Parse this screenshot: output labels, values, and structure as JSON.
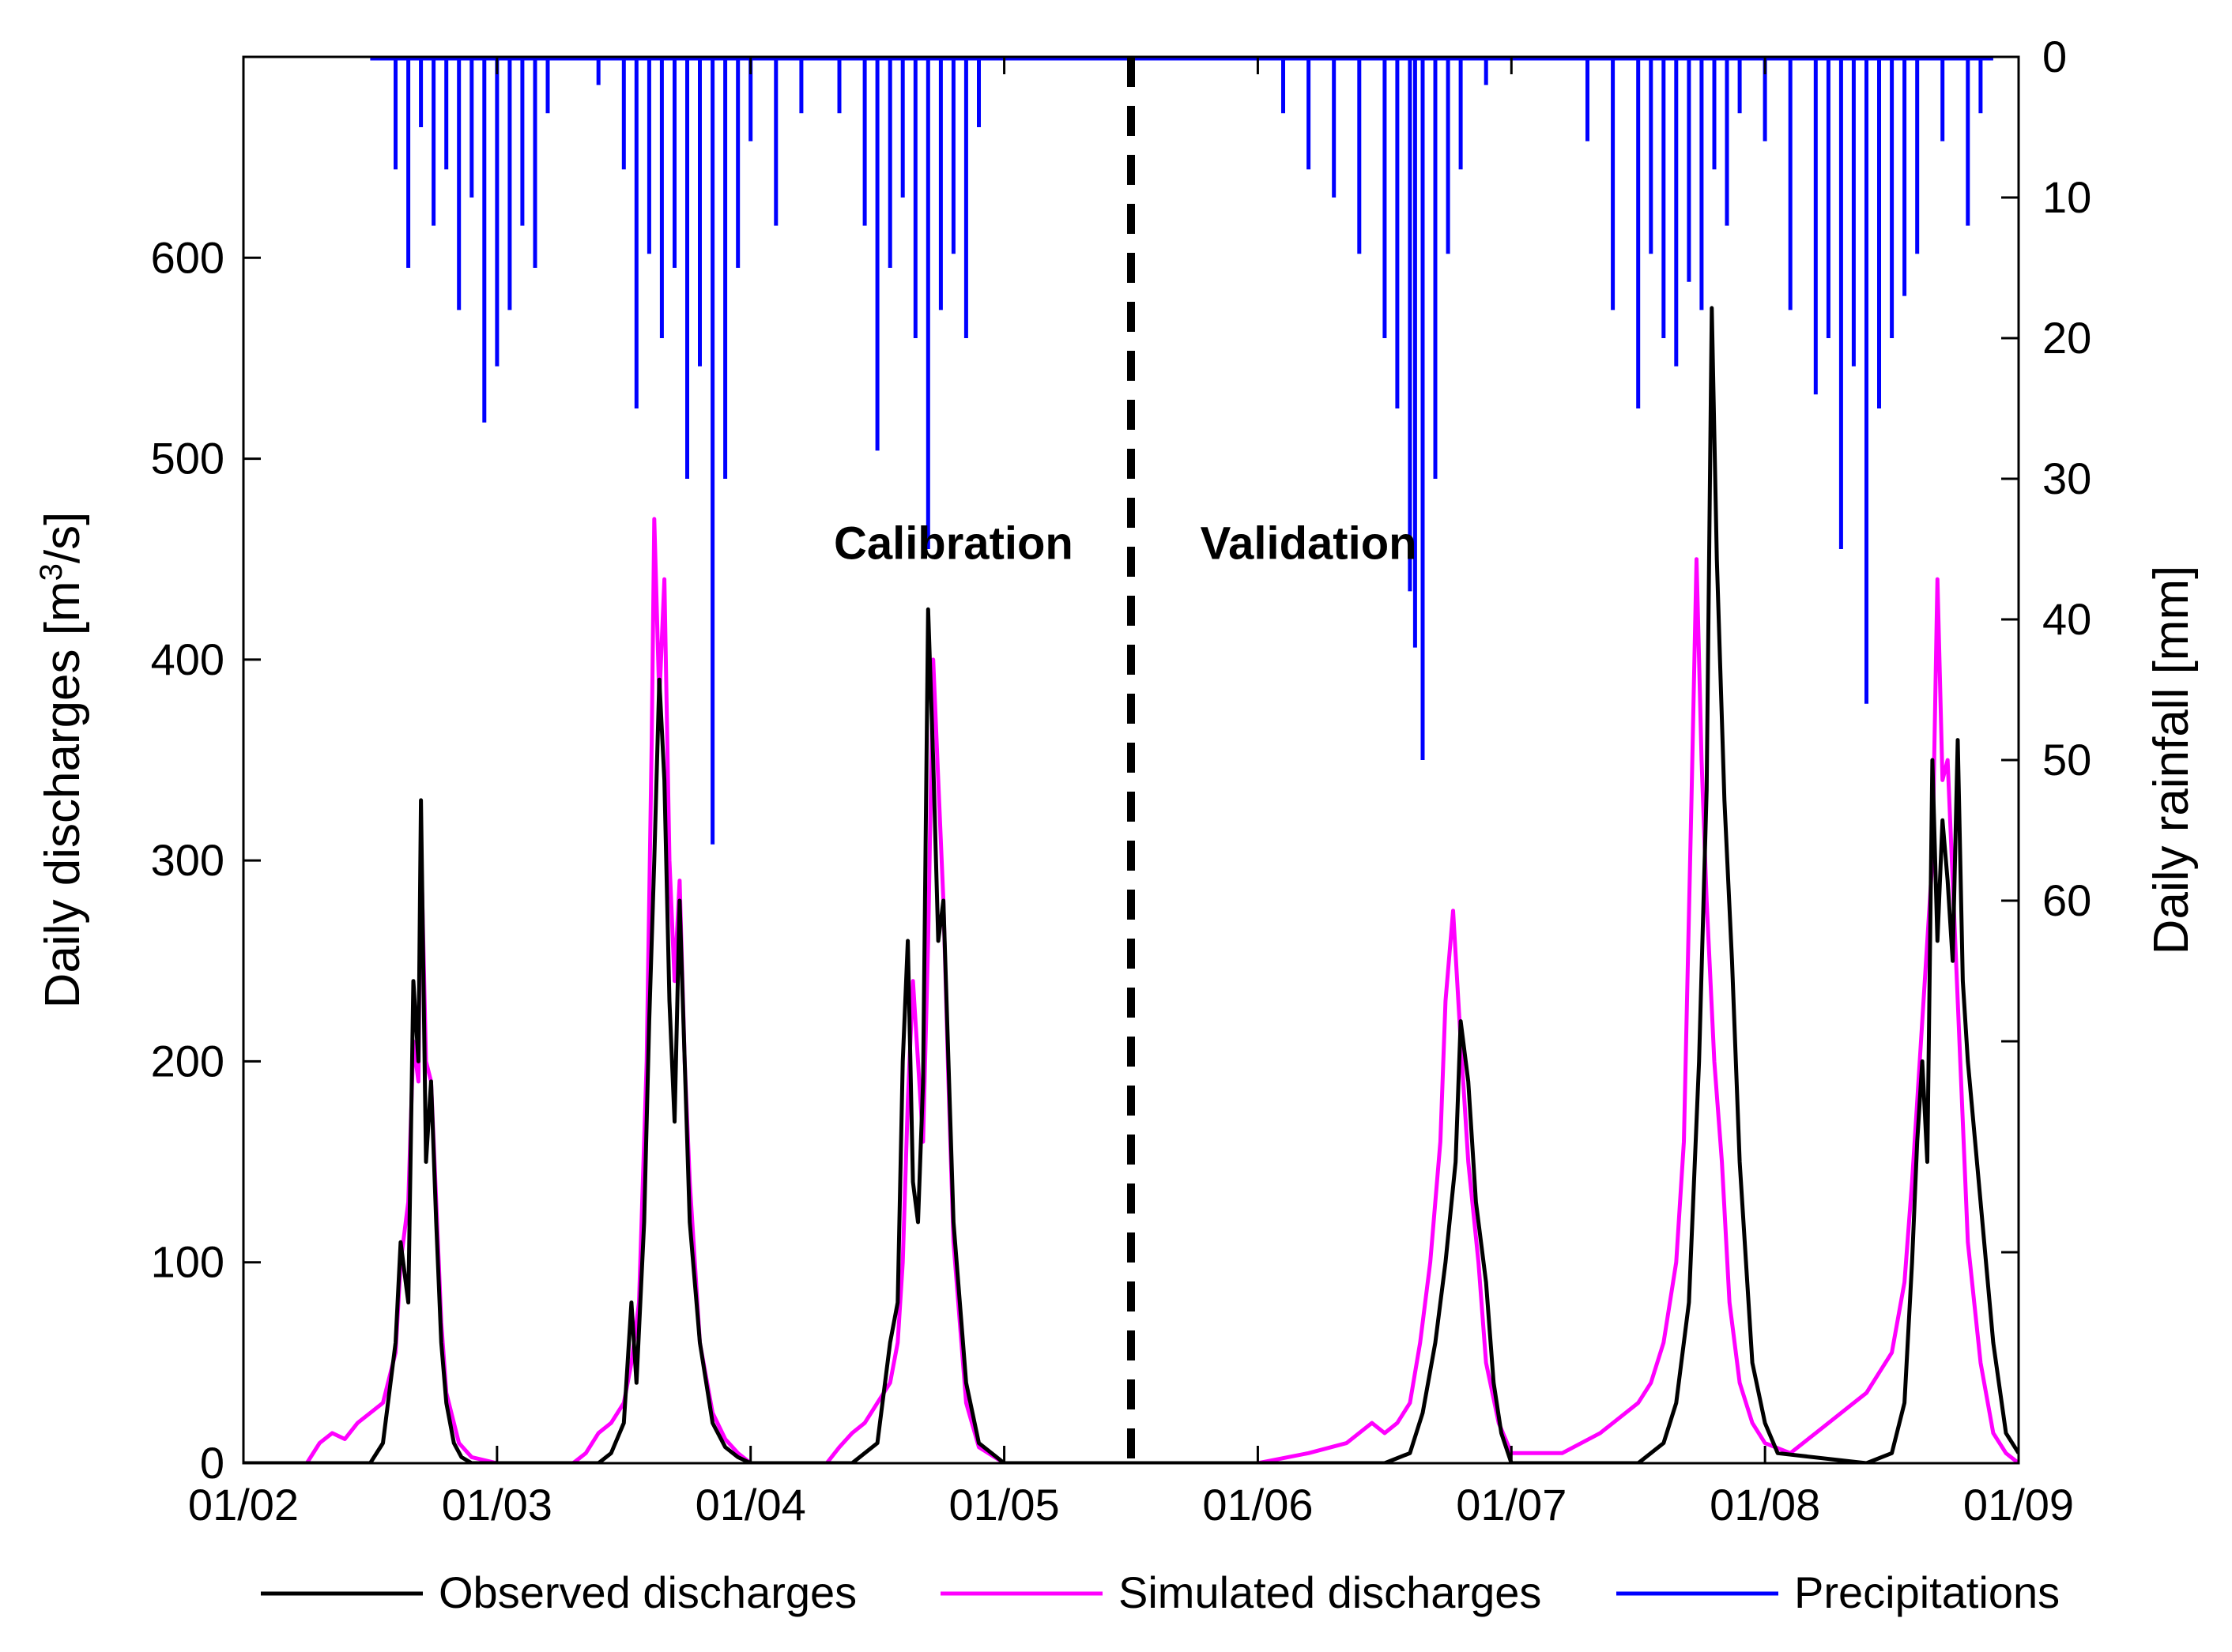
{
  "chart_data": {
    "type": "line",
    "title": "",
    "xlabel": "",
    "ylabel_left": "Daily discharges [m",
    "ylabel_left_sup": "3",
    "ylabel_left_tail": "/s]",
    "ylabel_right": "Daily rainfall [mm]",
    "x_ticks": [
      "01/02",
      "01/03",
      "01/04",
      "01/05",
      "01/06",
      "01/07",
      "01/08",
      "01/09"
    ],
    "xlim": [
      0,
      7
    ],
    "ylim_left": [
      0,
      700
    ],
    "yticks_left": [
      0,
      100,
      200,
      300,
      400,
      500,
      600
    ],
    "ylim_right": [
      0,
      100
    ],
    "yticks_right": [
      0,
      10,
      20,
      30,
      40,
      50,
      60
    ],
    "yticks_right_marks_only": [
      70,
      85
    ],
    "divider_x": 3.5,
    "annotations": [
      {
        "text": "Calibration",
        "x": 2.8,
        "y": 450
      },
      {
        "text": "Validation",
        "x": 4.2,
        "y": 450
      }
    ],
    "series": [
      {
        "name": "Observed discharges",
        "color": "#000000",
        "axis": "left",
        "x": [
          0.0,
          0.5,
          0.55,
          0.6,
          0.62,
          0.65,
          0.67,
          0.69,
          0.7,
          0.72,
          0.74,
          0.76,
          0.78,
          0.8,
          0.83,
          0.86,
          0.9,
          0.95,
          1.0,
          1.4,
          1.45,
          1.5,
          1.53,
          1.55,
          1.58,
          1.6,
          1.62,
          1.64,
          1.66,
          1.68,
          1.7,
          1.72,
          1.74,
          1.76,
          1.8,
          1.85,
          1.9,
          1.95,
          2.0,
          2.4,
          2.5,
          2.55,
          2.58,
          2.6,
          2.62,
          2.64,
          2.66,
          2.68,
          2.7,
          2.72,
          2.74,
          2.76,
          2.78,
          2.8,
          2.85,
          2.9,
          3.0,
          3.5,
          4.5,
          4.6,
          4.65,
          4.7,
          4.74,
          4.78,
          4.8,
          4.83,
          4.86,
          4.9,
          4.93,
          4.96,
          5.0,
          5.5,
          5.6,
          5.65,
          5.7,
          5.74,
          5.77,
          5.79,
          5.81,
          5.84,
          5.87,
          5.9,
          5.95,
          6.0,
          6.05,
          6.4,
          6.5,
          6.55,
          6.58,
          6.6,
          6.62,
          6.64,
          6.66,
          6.68,
          6.7,
          6.72,
          6.74,
          6.76,
          6.78,
          6.8,
          6.85,
          6.9,
          6.95,
          7.0
        ],
        "y": [
          0,
          0,
          10,
          60,
          110,
          80,
          240,
          200,
          330,
          150,
          190,
          120,
          60,
          30,
          10,
          3,
          0,
          0,
          0,
          0,
          5,
          20,
          80,
          40,
          120,
          220,
          300,
          390,
          340,
          230,
          170,
          280,
          200,
          120,
          60,
          20,
          8,
          3,
          0,
          0,
          10,
          60,
          80,
          200,
          260,
          140,
          120,
          190,
          425,
          350,
          260,
          280,
          200,
          120,
          40,
          10,
          0,
          0,
          0,
          5,
          25,
          60,
          100,
          150,
          220,
          190,
          130,
          90,
          40,
          15,
          0,
          0,
          10,
          30,
          80,
          200,
          335,
          575,
          450,
          330,
          250,
          150,
          50,
          20,
          5,
          0,
          5,
          30,
          100,
          160,
          200,
          150,
          350,
          260,
          320,
          290,
          250,
          360,
          240,
          200,
          130,
          60,
          15,
          5
        ]
      },
      {
        "name": "Simulated discharges",
        "color": "#ff00ff",
        "axis": "left",
        "x": [
          0.0,
          0.25,
          0.3,
          0.35,
          0.4,
          0.45,
          0.5,
          0.55,
          0.6,
          0.62,
          0.65,
          0.67,
          0.69,
          0.7,
          0.72,
          0.74,
          0.76,
          0.78,
          0.8,
          0.85,
          0.9,
          1.0,
          1.3,
          1.35,
          1.4,
          1.45,
          1.5,
          1.53,
          1.56,
          1.59,
          1.61,
          1.62,
          1.64,
          1.66,
          1.68,
          1.7,
          1.72,
          1.74,
          1.76,
          1.8,
          1.85,
          1.9,
          1.95,
          2.0,
          2.3,
          2.35,
          2.4,
          2.45,
          2.5,
          2.55,
          2.58,
          2.6,
          2.62,
          2.64,
          2.66,
          2.68,
          2.7,
          2.72,
          2.74,
          2.76,
          2.78,
          2.8,
          2.85,
          2.9,
          3.0,
          4.0,
          4.2,
          4.35,
          4.45,
          4.5,
          4.55,
          4.6,
          4.64,
          4.68,
          4.72,
          4.74,
          4.77,
          4.8,
          4.83,
          4.87,
          4.9,
          4.95,
          5.0,
          5.2,
          5.35,
          5.45,
          5.5,
          5.55,
          5.6,
          5.65,
          5.68,
          5.71,
          5.73,
          5.75,
          5.77,
          5.8,
          5.83,
          5.86,
          5.9,
          5.95,
          6.0,
          6.1,
          6.2,
          6.3,
          6.4,
          6.45,
          6.5,
          6.55,
          6.58,
          6.6,
          6.62,
          6.64,
          6.66,
          6.68,
          6.7,
          6.72,
          6.74,
          6.76,
          6.78,
          6.8,
          6.85,
          6.9,
          6.95,
          7.0
        ],
        "y": [
          0,
          0,
          10,
          15,
          12,
          20,
          25,
          30,
          55,
          100,
          130,
          210,
          190,
          310,
          200,
          190,
          130,
          70,
          35,
          10,
          3,
          0,
          0,
          5,
          15,
          20,
          30,
          50,
          80,
          200,
          360,
          470,
          380,
          440,
          300,
          240,
          290,
          200,
          140,
          60,
          25,
          12,
          5,
          0,
          0,
          8,
          15,
          20,
          30,
          40,
          60,
          100,
          180,
          240,
          200,
          160,
          260,
          400,
          340,
          280,
          190,
          110,
          30,
          8,
          0,
          0,
          5,
          10,
          20,
          15,
          20,
          30,
          60,
          100,
          160,
          230,
          275,
          210,
          150,
          100,
          50,
          20,
          5,
          5,
          15,
          25,
          30,
          40,
          60,
          100,
          160,
          330,
          450,
          350,
          280,
          200,
          150,
          80,
          40,
          20,
          10,
          5,
          15,
          25,
          35,
          45,
          55,
          90,
          140,
          180,
          220,
          260,
          300,
          440,
          340,
          350,
          290,
          230,
          170,
          110,
          50,
          15,
          5,
          0
        ]
      },
      {
        "name": "Precipitations",
        "color": "#0000ff",
        "axis": "right",
        "x": [
          0.5,
          0.6,
          0.65,
          0.7,
          0.75,
          0.8,
          0.85,
          0.9,
          0.95,
          1.0,
          1.05,
          1.1,
          1.15,
          1.2,
          1.4,
          1.5,
          1.55,
          1.6,
          1.65,
          1.7,
          1.75,
          1.8,
          1.85,
          1.9,
          1.95,
          2.0,
          2.1,
          2.2,
          2.35,
          2.45,
          2.5,
          2.55,
          2.6,
          2.65,
          2.7,
          2.75,
          2.8,
          2.85,
          2.9,
          3.0,
          4.1,
          4.2,
          4.3,
          4.4,
          4.5,
          4.55,
          4.6,
          4.62,
          4.65,
          4.7,
          4.75,
          4.8,
          4.9,
          5.0,
          5.3,
          5.4,
          5.5,
          5.55,
          5.6,
          5.65,
          5.7,
          5.75,
          5.8,
          5.85,
          5.9,
          6.0,
          6.1,
          6.2,
          6.25,
          6.3,
          6.35,
          6.4,
          6.45,
          6.5,
          6.55,
          6.6,
          6.7,
          6.8,
          6.85,
          6.9
        ],
        "y": [
          0,
          8,
          15,
          5,
          12,
          8,
          18,
          10,
          26,
          22,
          18,
          12,
          15,
          4,
          2,
          8,
          25,
          14,
          20,
          15,
          30,
          22,
          56,
          30,
          15,
          6,
          12,
          4,
          4,
          12,
          28,
          15,
          10,
          20,
          35,
          18,
          14,
          20,
          5,
          0,
          4,
          8,
          10,
          14,
          20,
          25,
          38,
          42,
          50,
          30,
          14,
          8,
          2,
          0,
          6,
          18,
          25,
          14,
          20,
          22,
          16,
          18,
          8,
          12,
          4,
          6,
          18,
          24,
          20,
          35,
          22,
          46,
          25,
          20,
          17,
          14,
          6,
          12,
          4,
          0
        ]
      }
    ],
    "legend": [
      {
        "label": "Observed discharges",
        "color": "#000000"
      },
      {
        "label": "Simulated discharges",
        "color": "#ff00ff"
      },
      {
        "label": "Precipitations",
        "color": "#0000ff"
      }
    ],
    "legend_position": "bottom"
  }
}
